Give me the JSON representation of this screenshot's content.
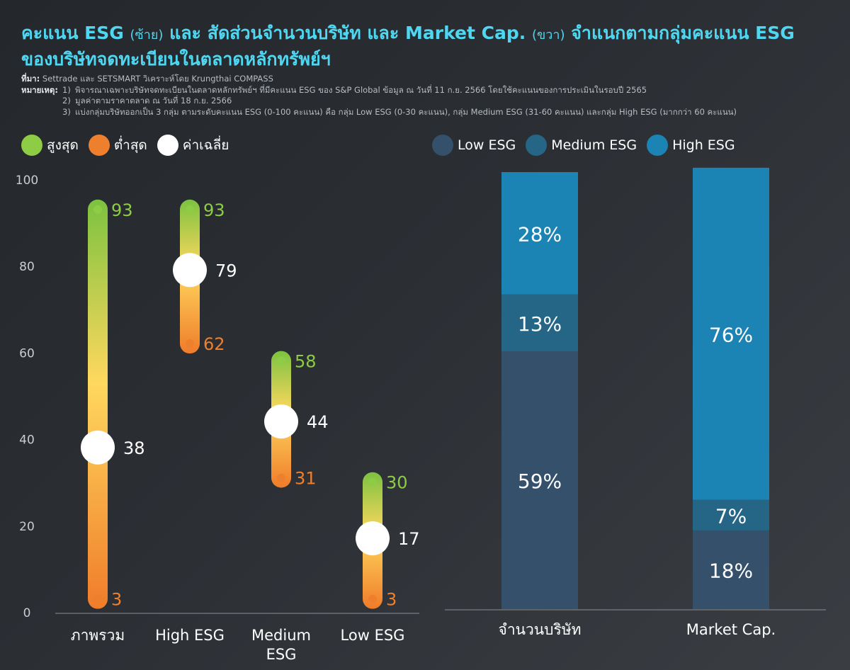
{
  "title": {
    "line1_a": "คะแนน ESG",
    "line1_paren1": "(ซ้าย)",
    "line1_b": "และ สัดส่วนจำนวนบริษัท และ Market Cap.",
    "line1_paren2": "(ขวา)",
    "line1_c": "จำแนกตามกลุ่มคะแนน ESG",
    "line2": "ของบริษัทจดทะเบียนในตลาดหลักทรัพย์ฯ"
  },
  "notes": {
    "source_label": "ที่มา:",
    "source_text": "Settrade และ SETSMART วิเคราะห์โดย Krungthai COMPASS",
    "remark_label": "หมายเหตุ:",
    "items": [
      {
        "num": "1)",
        "text": "พิจารณาเฉพาะบริษัทจดทะเบียนในตลาดหลักทรัพย์ฯ ที่มีคะแนน ESG ของ S&P Global ข้อมูล ณ วันที่ 11 ก.ย. 2566 โดยใช้คะแนนของการประเมินในรอบปี 2565"
      },
      {
        "num": "2)",
        "text": "มูลค่าตามราคาตลาด ณ วันที่ 18 ก.ย. 2566"
      },
      {
        "num": "3)",
        "text": "แบ่งกลุ่มบริษัทออกเป็น 3 กลุ่ม ตามระดับคะแนน ESG (0-100 คะแนน) คือ กลุ่ม Low ESG (0-30 คะแนน), กลุ่ม Medium ESG (31-60 คะแนน) และกลุ่ม High ESG (มากกว่า 60 คะแนน)"
      }
    ]
  },
  "legend_left": [
    {
      "label": "สูงสุด",
      "color": "#8dcc44"
    },
    {
      "label": "ต่ำสุด",
      "color": "#ee7f2c"
    },
    {
      "label": "ค่าเฉลี่ย",
      "color": "#ffffff"
    }
  ],
  "legend_right": [
    {
      "label": "Low ESG",
      "color": "#34506a"
    },
    {
      "label": "Medium ESG",
      "color": "#256586"
    },
    {
      "label": "High ESG",
      "color": "#1c84b4"
    }
  ],
  "chart_data": [
    {
      "type": "range-dot",
      "ylim": [
        0,
        100
      ],
      "yticks": [
        "0",
        "20",
        "40",
        "60",
        "80",
        "100"
      ],
      "categories": [
        "ภาพรวม",
        "High ESG",
        "Medium ESG",
        "Low ESG"
      ],
      "series": [
        {
          "name": "สูงสุด",
          "values": [
            93,
            93,
            58,
            30
          ]
        },
        {
          "name": "ต่ำสุด",
          "values": [
            3,
            62,
            31,
            3
          ]
        },
        {
          "name": "ค่าเฉลี่ย",
          "values": [
            38,
            79,
            44,
            17
          ]
        }
      ]
    },
    {
      "type": "bar",
      "stacked": true,
      "unit": "%",
      "categories": [
        "จำนวนบริษัท",
        "Market Cap."
      ],
      "series": [
        {
          "name": "Low ESG",
          "values": [
            59,
            18
          ]
        },
        {
          "name": "Medium ESG",
          "values": [
            13,
            7
          ]
        },
        {
          "name": "High ESG",
          "values": [
            28,
            76
          ]
        }
      ]
    }
  ]
}
